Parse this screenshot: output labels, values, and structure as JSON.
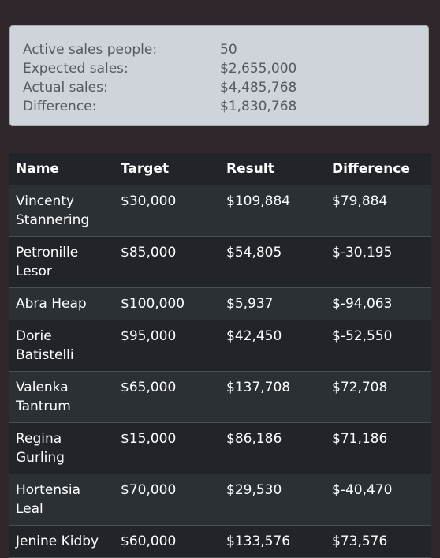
{
  "summary": {
    "active_label": "Active sales people:",
    "active_value": "50",
    "expected_label": "Expected sales:",
    "expected_value": "$2,655,000",
    "actual_label": "Actual sales:",
    "actual_value": "$4,485,768",
    "difference_label": "Difference:",
    "difference_value": "$1,830,768"
  },
  "table": {
    "headers": {
      "name": "Name",
      "target": "Target",
      "result": "Result",
      "difference": "Difference"
    },
    "rows": [
      {
        "name": "Vincenty Stannering",
        "target": "$30,000",
        "result": "$109,884",
        "difference": "$79,884"
      },
      {
        "name": "Petronille Lesor",
        "target": "$85,000",
        "result": "$54,805",
        "difference": "$-30,195"
      },
      {
        "name": "Abra Heap",
        "target": "$100,000",
        "result": "$5,937",
        "difference": "$-94,063"
      },
      {
        "name": "Dorie Batistelli",
        "target": "$95,000",
        "result": "$42,450",
        "difference": "$-52,550"
      },
      {
        "name": "Valenka Tantrum",
        "target": "$65,000",
        "result": "$137,708",
        "difference": "$72,708"
      },
      {
        "name": "Regina Gurling",
        "target": "$15,000",
        "result": "$86,186",
        "difference": "$71,186"
      },
      {
        "name": "Hortensia Leal",
        "target": "$70,000",
        "result": "$29,530",
        "difference": "$-40,470"
      },
      {
        "name": "Jenine Kidby",
        "target": "$60,000",
        "result": "$133,576",
        "difference": "$73,576"
      }
    ]
  }
}
